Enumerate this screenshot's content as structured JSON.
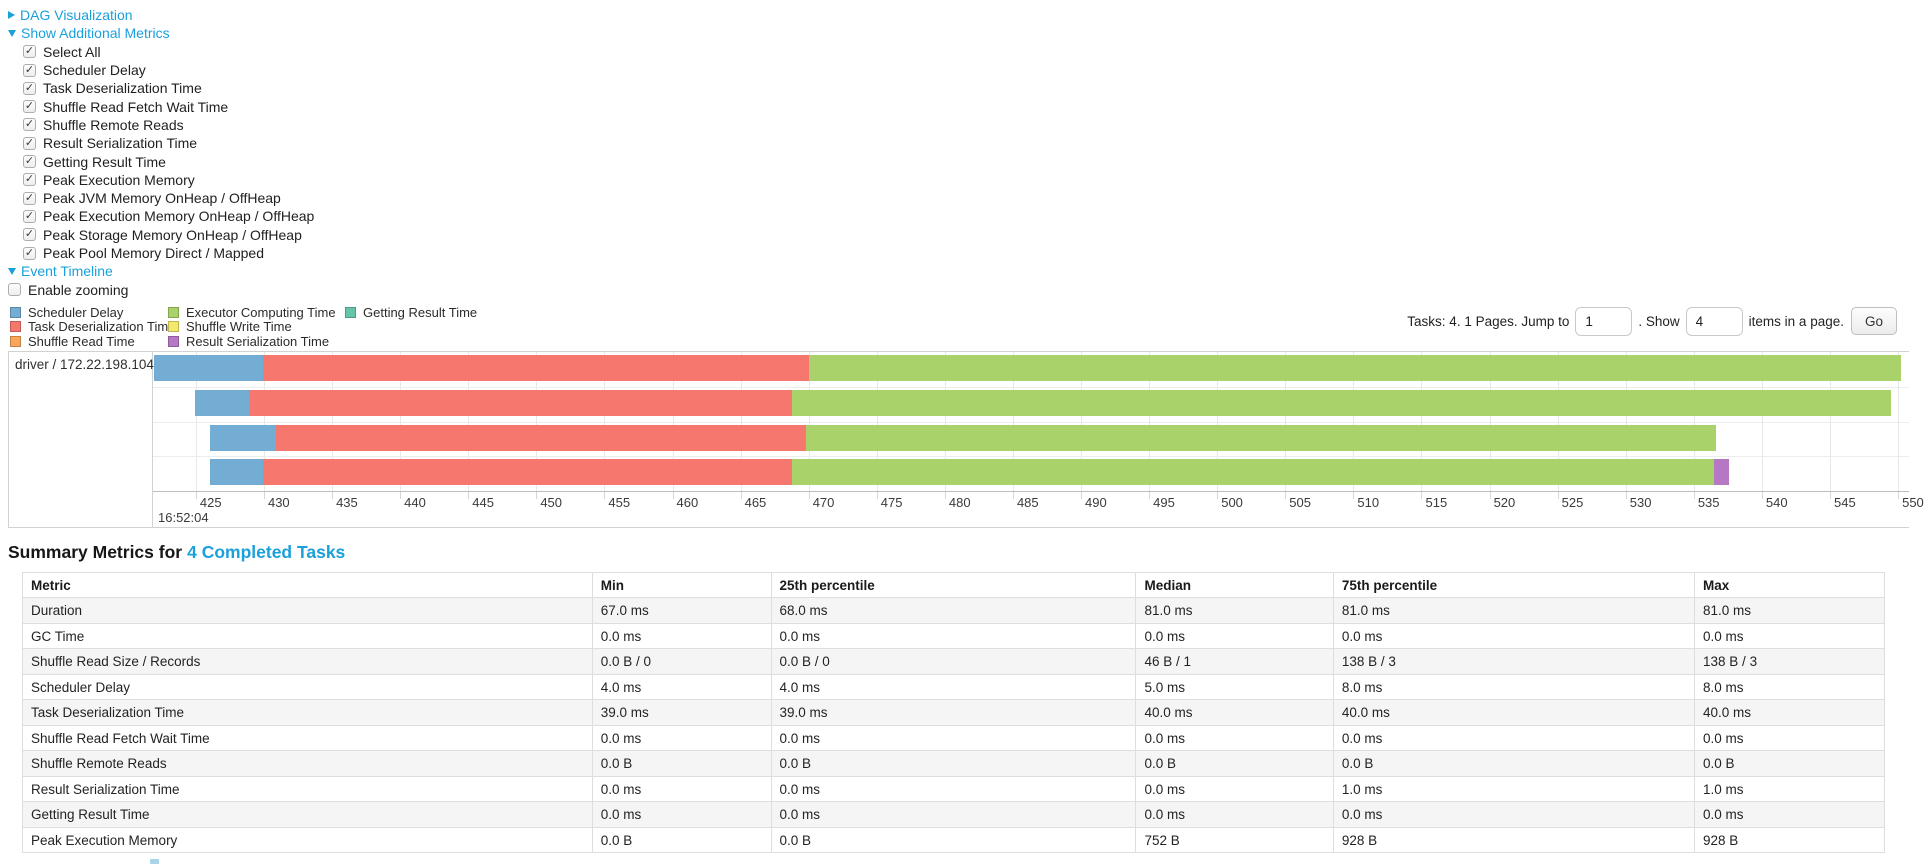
{
  "controls": {
    "dag": {
      "label": "DAG Visualization",
      "state": "collapsed"
    },
    "additional_metrics": {
      "label": "Show Additional Metrics",
      "state": "expanded"
    },
    "metric_checkboxes": [
      {
        "label": "Select All",
        "checked": true
      },
      {
        "label": "Scheduler Delay",
        "checked": true
      },
      {
        "label": "Task Deserialization Time",
        "checked": true
      },
      {
        "label": "Shuffle Read Fetch Wait Time",
        "checked": true
      },
      {
        "label": "Shuffle Remote Reads",
        "checked": true
      },
      {
        "label": "Result Serialization Time",
        "checked": true
      },
      {
        "label": "Getting Result Time",
        "checked": true
      },
      {
        "label": "Peak Execution Memory",
        "checked": true
      },
      {
        "label": "Peak JVM Memory OnHeap / OffHeap",
        "checked": true
      },
      {
        "label": "Peak Execution Memory OnHeap / OffHeap",
        "checked": true
      },
      {
        "label": "Peak Storage Memory OnHeap / OffHeap",
        "checked": true
      },
      {
        "label": "Peak Pool Memory Direct / Mapped",
        "checked": true
      }
    ],
    "event_timeline": {
      "label": "Event Timeline",
      "state": "expanded"
    },
    "enable_zooming": {
      "label": "Enable zooming",
      "checked": false
    }
  },
  "pagination": {
    "prefix": "Tasks: 4. 1 Pages. Jump to",
    "jump_value": "1",
    "mid": ". Show",
    "show_value": "4",
    "suffix": "items in a page.",
    "go": "Go"
  },
  "chart_data": {
    "type": "bar",
    "subtype": "task-event-timeline-gantt",
    "row_label": "driver / 172.22.198.104",
    "legend_columns": [
      [
        {
          "label": "Scheduler Delay",
          "color": "#74add4"
        },
        {
          "label": "Task Deserialization Time",
          "color": "#f6776e"
        },
        {
          "label": "Shuffle Read Time",
          "color": "#f9a65a"
        }
      ],
      [
        {
          "label": "Executor Computing Time",
          "color": "#a9d36a"
        },
        {
          "label": "Shuffle Write Time",
          "color": "#f3e869"
        },
        {
          "label": "Result Serialization Time",
          "color": "#b678c4"
        }
      ],
      [
        {
          "label": "Getting Result Time",
          "color": "#66c4ab"
        }
      ]
    ],
    "series_colors": {
      "scheduler_delay": "#74add4",
      "task_deserialization": "#f6776e",
      "shuffle_read": "#f9a65a",
      "executor_computing": "#a9d36a",
      "shuffle_write": "#f3e869",
      "result_serialization": "#b678c4",
      "getting_result": "#66c4ab"
    },
    "x_axis": {
      "major_label": "16:52:04",
      "tick_start": 425,
      "tick_end": 550,
      "tick_step": 5,
      "domain_min": 421.85,
      "domain_max": 550.8,
      "unit": "ms within second 16:52:04"
    },
    "tasks": [
      {
        "segments": [
          {
            "metric": "scheduler_delay",
            "start": 421.9,
            "end": 429.9
          },
          {
            "metric": "task_deserialization",
            "start": 429.9,
            "end": 470.0
          },
          {
            "metric": "executor_computing",
            "start": 470.0,
            "end": 550.2
          }
        ]
      },
      {
        "segments": [
          {
            "metric": "scheduler_delay",
            "start": 424.9,
            "end": 428.9
          },
          {
            "metric": "task_deserialization",
            "start": 428.9,
            "end": 468.8
          },
          {
            "metric": "executor_computing",
            "start": 468.8,
            "end": 549.5
          }
        ]
      },
      {
        "segments": [
          {
            "metric": "scheduler_delay",
            "start": 426.0,
            "end": 430.9
          },
          {
            "metric": "task_deserialization",
            "start": 430.9,
            "end": 469.8
          },
          {
            "metric": "executor_computing",
            "start": 469.8,
            "end": 536.6
          }
        ]
      },
      {
        "segments": [
          {
            "metric": "scheduler_delay",
            "start": 426.0,
            "end": 429.9
          },
          {
            "metric": "task_deserialization",
            "start": 429.9,
            "end": 468.8
          },
          {
            "metric": "executor_computing",
            "start": 468.8,
            "end": 536.5
          },
          {
            "metric": "result_serialization",
            "start": 536.5,
            "end": 537.6
          }
        ]
      }
    ]
  },
  "summary": {
    "title_prefix": "Summary Metrics for",
    "title_link": "4 Completed Tasks",
    "table": {
      "headers": [
        "Metric",
        "Min",
        "25th percentile",
        "Median",
        "75th percentile",
        "Max"
      ],
      "rows": [
        [
          "Duration",
          "67.0 ms",
          "68.0 ms",
          "81.0 ms",
          "81.0 ms",
          "81.0 ms"
        ],
        [
          "GC Time",
          "0.0 ms",
          "0.0 ms",
          "0.0 ms",
          "0.0 ms",
          "0.0 ms"
        ],
        [
          "Shuffle Read Size / Records",
          "0.0 B / 0",
          "0.0 B / 0",
          "46 B / 1",
          "138 B / 3",
          "138 B / 3"
        ],
        [
          "Scheduler Delay",
          "4.0 ms",
          "4.0 ms",
          "5.0 ms",
          "8.0 ms",
          "8.0 ms"
        ],
        [
          "Task Deserialization Time",
          "39.0 ms",
          "39.0 ms",
          "40.0 ms",
          "40.0 ms",
          "40.0 ms"
        ],
        [
          "Shuffle Read Fetch Wait Time",
          "0.0 ms",
          "0.0 ms",
          "0.0 ms",
          "0.0 ms",
          "0.0 ms"
        ],
        [
          "Shuffle Remote Reads",
          "0.0 B",
          "0.0 B",
          "0.0 B",
          "0.0 B",
          "0.0 B"
        ],
        [
          "Result Serialization Time",
          "0.0 ms",
          "0.0 ms",
          "0.0 ms",
          "1.0 ms",
          "1.0 ms"
        ],
        [
          "Getting Result Time",
          "0.0 ms",
          "0.0 ms",
          "0.0 ms",
          "0.0 ms",
          "0.0 ms"
        ],
        [
          "Peak Execution Memory",
          "0.0 B",
          "0.0 B",
          "752 B",
          "928 B",
          "928 B"
        ]
      ]
    }
  }
}
